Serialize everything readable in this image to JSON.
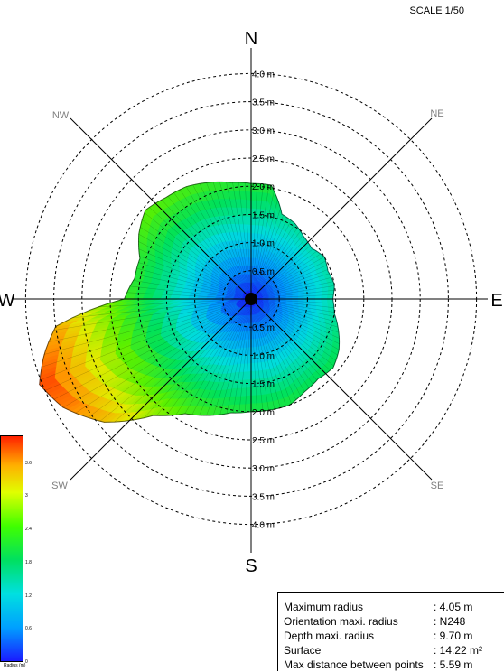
{
  "scale_label": "SCALE 1/50",
  "compass": {
    "N": "N",
    "S": "S",
    "E": "E",
    "W": "W",
    "NE": "NE",
    "NW": "NW",
    "SE": "SE",
    "SW": "SW"
  },
  "rings": [
    "0.5 m",
    "1.0 m",
    "1.5 m",
    "2.0 m",
    "2.5 m",
    "3.0 m",
    "3.5 m",
    "4.0 m"
  ],
  "colorbar": {
    "ticks": [
      "0",
      "0.6",
      "1.2",
      "1.8",
      "2.4",
      "3",
      "3.6"
    ],
    "caption": "Radius (m)"
  },
  "info": [
    {
      "label": "Maximum radius",
      "value": ": 4.05 m"
    },
    {
      "label": "Orientation maxi. radius",
      "value": ": N248"
    },
    {
      "label": "Depth maxi. radius",
      "value": ": 9.70 m"
    },
    {
      "label": "Surface",
      "value": ": 14.22 m²"
    },
    {
      "label": "Max distance between points",
      "value": ": 5.59 m"
    }
  ],
  "profile": {
    "unit": "m",
    "points": [
      [
        0,
        2.05
      ],
      [
        10,
        2.05
      ],
      [
        20,
        1.6
      ],
      [
        30,
        1.55
      ],
      [
        40,
        1.45
      ],
      [
        50,
        1.4
      ],
      [
        60,
        1.5
      ],
      [
        70,
        1.45
      ],
      [
        80,
        1.5
      ],
      [
        90,
        1.45
      ],
      [
        100,
        1.5
      ],
      [
        110,
        1.65
      ],
      [
        120,
        1.8
      ],
      [
        130,
        1.9
      ],
      [
        140,
        1.85
      ],
      [
        150,
        1.9
      ],
      [
        160,
        2.0
      ],
      [
        170,
        2.0
      ],
      [
        180,
        2.0
      ],
      [
        190,
        2.05
      ],
      [
        200,
        2.2
      ],
      [
        210,
        2.35
      ],
      [
        220,
        2.7
      ],
      [
        230,
        3.4
      ],
      [
        240,
        3.85
      ],
      [
        248,
        4.05
      ],
      [
        255,
        3.8
      ],
      [
        262,
        3.5
      ],
      [
        270,
        2.25
      ],
      [
        280,
        2.1
      ],
      [
        290,
        2.1
      ],
      [
        300,
        2.3
      ],
      [
        310,
        2.45
      ],
      [
        320,
        2.35
      ],
      [
        330,
        2.3
      ],
      [
        340,
        2.2
      ],
      [
        350,
        2.1
      ]
    ]
  }
}
